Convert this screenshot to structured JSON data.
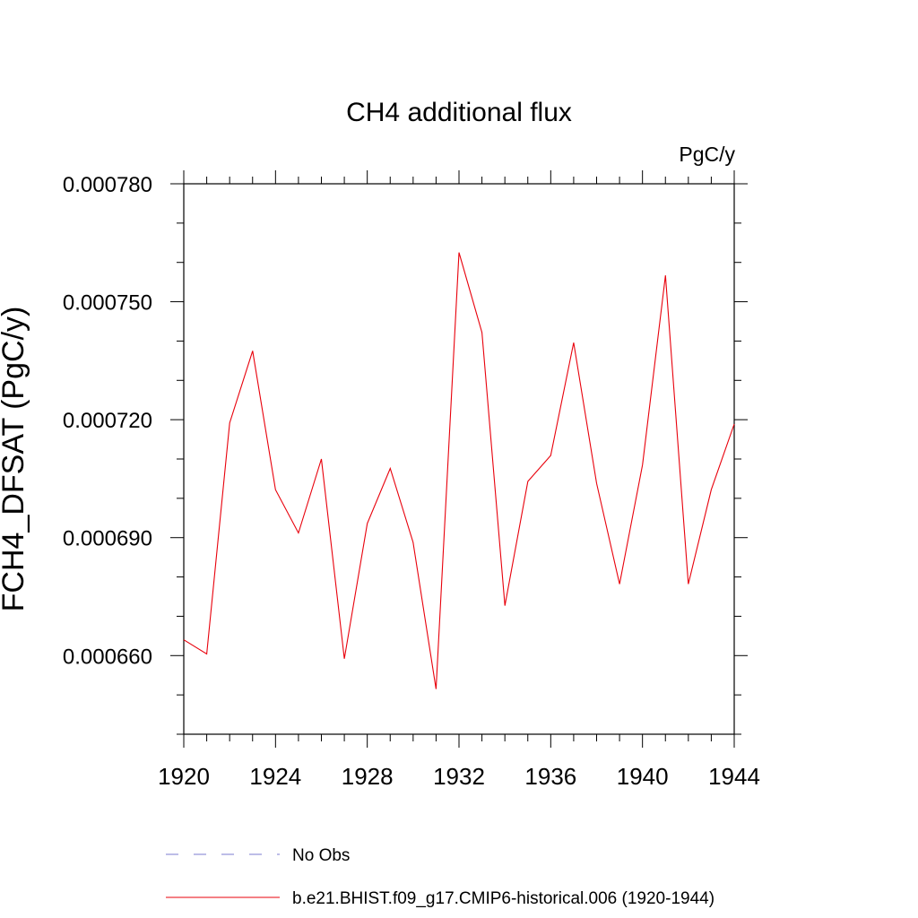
{
  "chart_data": {
    "type": "line",
    "title": "CH4 additional flux",
    "units_label": "PgC/y",
    "xlabel": "",
    "ylabel": "FCH4_DFSAT  (PgC/y)",
    "xlim": [
      1920,
      1944
    ],
    "ylim": [
      0.00064,
      0.00078
    ],
    "x_ticks": [
      "1920",
      "1924",
      "1928",
      "1932",
      "1936",
      "1940",
      "1944"
    ],
    "y_ticks": [
      "0.000660",
      "0.000690",
      "0.000720",
      "0.000750",
      "0.000780"
    ],
    "x": [
      1920,
      1921,
      1922,
      1923,
      1924,
      1925,
      1926,
      1927,
      1928,
      1929,
      1930,
      1931,
      1932,
      1933,
      1934,
      1935,
      1936,
      1937,
      1938,
      1939,
      1940,
      1941,
      1942,
      1943,
      1944
    ],
    "series": [
      {
        "name": "b.e21.BHIST.f09_g17.CMIP6-historical.006 (1920-1944)",
        "color": "#e8000b",
        "values": [
          0.000664,
          0.0006604,
          0.0007192,
          0.0007375,
          0.0007022,
          0.0006912,
          0.00071,
          0.0006592,
          0.0006936,
          0.0007076,
          0.0006888,
          0.0006515,
          0.0007625,
          0.0007422,
          0.0006727,
          0.0007043,
          0.0007109,
          0.0007396,
          0.0007038,
          0.0006782,
          0.0007085,
          0.0007567,
          0.0006782,
          0.0007022,
          0.0007189
        ]
      }
    ],
    "legend": [
      {
        "label": "No Obs",
        "style": "dashed",
        "color": "#7b7bd0"
      },
      {
        "label": "b.e21.BHIST.f09_g17.CMIP6-historical.006 (1920-1944)",
        "style": "solid",
        "color": "#e8000b"
      }
    ],
    "legend_position": "bottom",
    "grid": false
  }
}
